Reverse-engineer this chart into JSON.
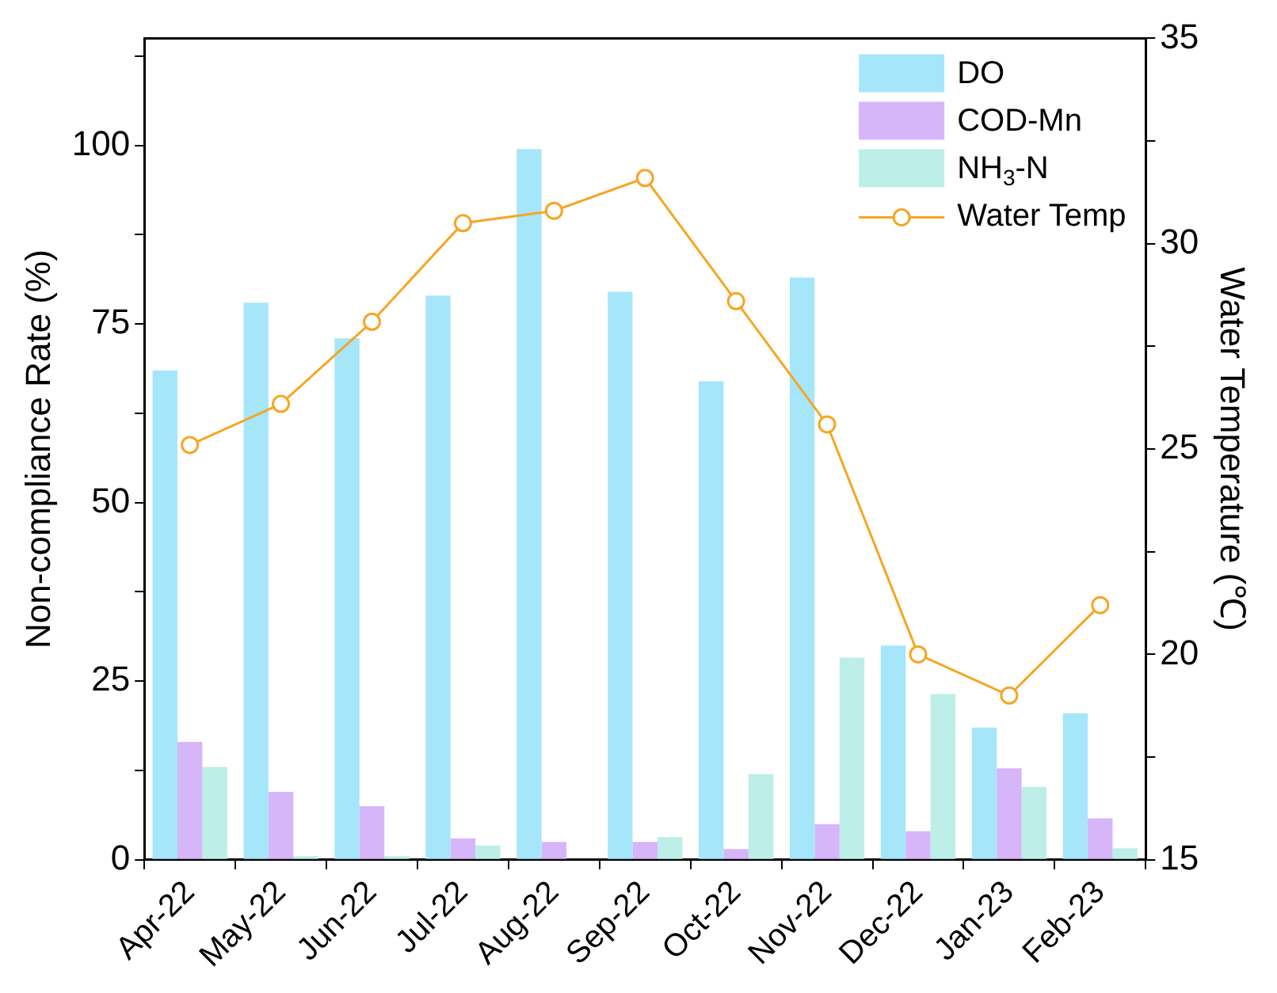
{
  "chart_data": {
    "type": "bar",
    "ylabel": "Non-compliance Rate (%)",
    "y2label": "Water Temperature (℃)",
    "categories": [
      "Apr-22",
      "May-22",
      "Jun-22",
      "Jul-22",
      "Aug-22",
      "Sep-22",
      "Oct-22",
      "Nov-22",
      "Dec-22",
      "Jan-23",
      "Feb-23"
    ],
    "series": [
      {
        "name": "DO",
        "color": "#a6e6fa",
        "values": [
          68.5,
          78,
          73,
          79,
          99.5,
          79.5,
          67,
          81.5,
          30,
          18.5,
          20.5
        ]
      },
      {
        "name": "COD-Mn",
        "color": "#d7b5f9",
        "values": [
          16.5,
          9.5,
          7.5,
          3,
          2.5,
          2.5,
          1.5,
          5,
          4,
          12.8,
          5.8
        ]
      },
      {
        "name": "NH$_{3}$-N",
        "color": "#bdeee8",
        "values": [
          13,
          0.5,
          0.5,
          2,
          0,
          3.2,
          12,
          28.3,
          23.2,
          10.2,
          1.6
        ]
      },
      {
        "name": "Water Temp",
        "type": "line",
        "axis": "y2",
        "color": "#f5a623",
        "marker": "circle",
        "values": [
          25.1,
          26.1,
          28.1,
          30.5,
          30.8,
          31.6,
          28.6,
          25.6,
          20,
          19,
          21.2
        ]
      }
    ],
    "ylim": [
      0,
      115
    ],
    "yticks": [
      0,
      {
        "value": 12.5,
        "label": null
      },
      25,
      {
        "value": 37.5,
        "label": null
      },
      50,
      {
        "value": 62.5,
        "label": null
      },
      75,
      {
        "value": 87.5,
        "label": null
      },
      100,
      {
        "value": 112.5,
        "label": null
      }
    ],
    "y2lim": [
      15,
      35
    ],
    "y2ticks": [
      15,
      {
        "value": 17.5,
        "label": null
      },
      20,
      {
        "value": 22.5,
        "label": null
      },
      25,
      {
        "value": 27.5,
        "label": null
      },
      30,
      {
        "value": 32.5,
        "label": null
      },
      35
    ],
    "grid": false,
    "legend": "top right"
  }
}
